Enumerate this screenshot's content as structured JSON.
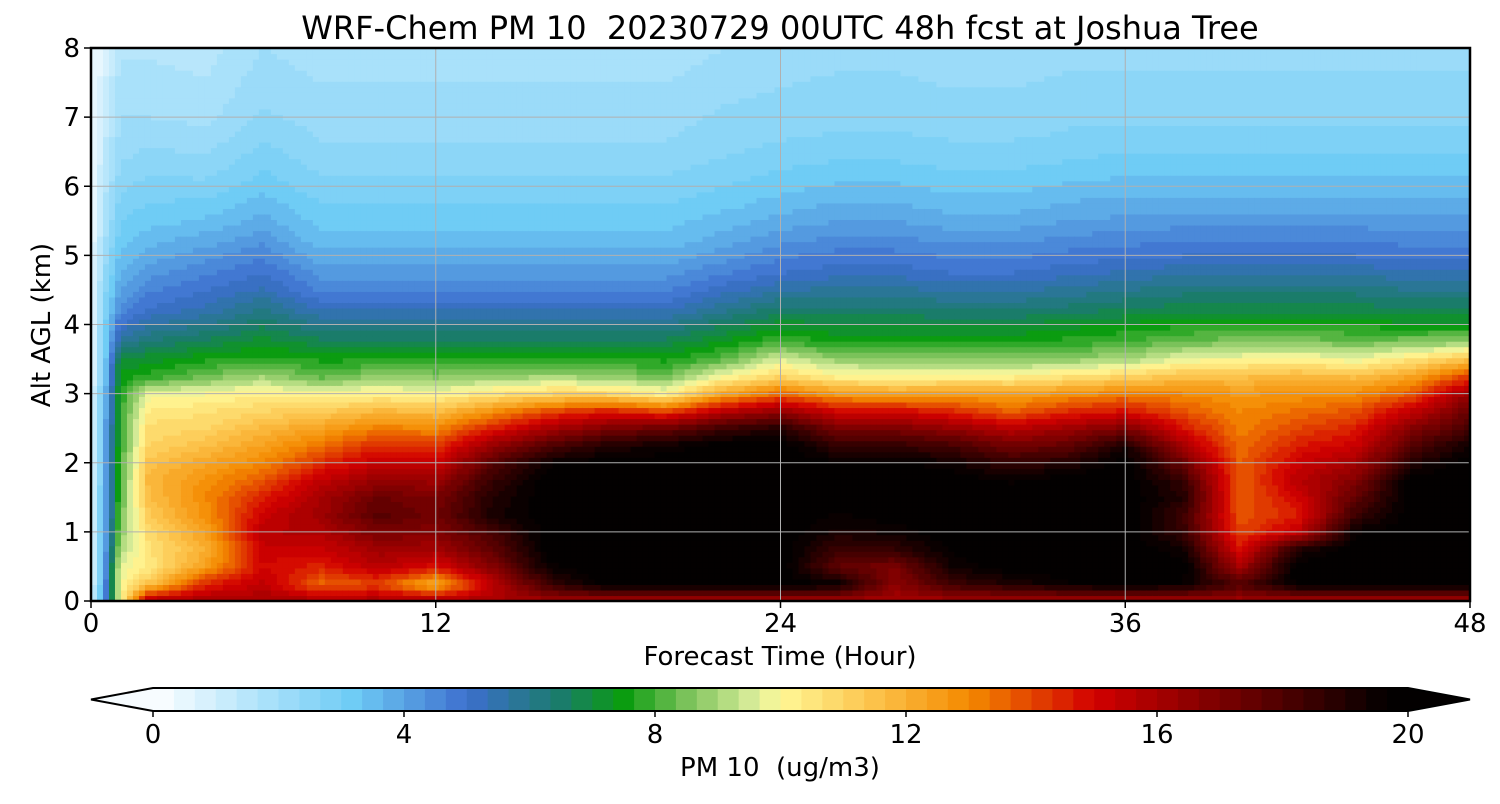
{
  "chart_data": {
    "type": "heatmap",
    "title": "WRF-Chem PM 10  20230729 00UTC 48h fcst at Joshua Tree",
    "xlabel": "Forecast Time (Hour)",
    "ylabel": "Alt AGL (km)",
    "xlim": [
      0,
      48
    ],
    "ylim": [
      0,
      8
    ],
    "xticks": [
      "0",
      "12",
      "24",
      "36",
      "48"
    ],
    "yticks": [
      "0",
      "1",
      "2",
      "3",
      "4",
      "5",
      "6",
      "7",
      "8"
    ],
    "grid": true,
    "colorbar": {
      "label": "PM 10  (ug/m3)",
      "range": [
        0,
        20
      ],
      "ticks": [
        "0",
        "4",
        "8",
        "12",
        "16",
        "20"
      ],
      "extend": "both",
      "orientation": "horizontal",
      "stops": [
        {
          "v": 0,
          "c": "#ffffff"
        },
        {
          "v": 1.5,
          "c": "#b8e6fb"
        },
        {
          "v": 3.2,
          "c": "#6ecbf5"
        },
        {
          "v": 5,
          "c": "#3d6fce"
        },
        {
          "v": 6.5,
          "c": "#1a7c6a"
        },
        {
          "v": 7.5,
          "c": "#0b9c10"
        },
        {
          "v": 8.5,
          "c": "#7ac25a"
        },
        {
          "v": 9.6,
          "c": "#dcee9c"
        },
        {
          "v": 10,
          "c": "#fff896"
        },
        {
          "v": 11.5,
          "c": "#fcc24a"
        },
        {
          "v": 13,
          "c": "#f48a00"
        },
        {
          "v": 15,
          "c": "#d20000"
        },
        {
          "v": 17,
          "c": "#7a0000"
        },
        {
          "v": 19.5,
          "c": "#0a0000"
        },
        {
          "v": 20,
          "c": "#000000"
        }
      ]
    },
    "heights_km": [
      0,
      0.25,
      0.5,
      0.75,
      1,
      1.25,
      1.5,
      1.75,
      2,
      2.25,
      2.5,
      2.75,
      3,
      3.25,
      3.5,
      3.75,
      4,
      4.25,
      4.5,
      4.75,
      5,
      5.25,
      5.5,
      5.75,
      6,
      6.25,
      6.5,
      6.75,
      7,
      7.25,
      7.5,
      7.75,
      8
    ],
    "hours": [
      0,
      0.5,
      1,
      2,
      4,
      6,
      8,
      10,
      12,
      14,
      16,
      18,
      20,
      22,
      24,
      26,
      28,
      30,
      32,
      34,
      36,
      38,
      40,
      42,
      44,
      46,
      48
    ],
    "profiles": [
      [
        0.5,
        0.5,
        0.5,
        0.5,
        0.5,
        0.5,
        0.5,
        0.4,
        0.4,
        0.4,
        0.4,
        0.4,
        0.4,
        0.3,
        0.3,
        0.3,
        0.3,
        0.3,
        0.3,
        0.3,
        0.3,
        0.3,
        0.3,
        0.3,
        0.3,
        0.2,
        0.2,
        0.2,
        0.2,
        0.2,
        0.2,
        0.2,
        0.2
      ],
      [
        4.5,
        4.5,
        4.2,
        4.1,
        4,
        4,
        4,
        4,
        3.9,
        3.9,
        3.9,
        3.8,
        3.6,
        3.4,
        3.2,
        3.1,
        3,
        2.8,
        2.6,
        2.4,
        2.2,
        2,
        1.8,
        1.7,
        1.6,
        1.5,
        1.4,
        1.3,
        1.2,
        1.1,
        1,
        0.9,
        0.9
      ],
      [
        9.8,
        9.8,
        9.7,
        9,
        8.6,
        8.3,
        8.1,
        8,
        7.9,
        7.8,
        7.8,
        7.7,
        7.6,
        7.4,
        7,
        5.8,
        5,
        4.4,
        4,
        3.7,
        3.4,
        3.2,
        3,
        2.8,
        2.6,
        2.4,
        2.2,
        2.1,
        2,
        1.9,
        1.8,
        1.7,
        1.6
      ],
      [
        16,
        11.5,
        10.4,
        10.6,
        10.8,
        11.2,
        11.6,
        11.8,
        11.5,
        11,
        10.8,
        10.4,
        9.8,
        7.8,
        7.2,
        6.4,
        5.6,
        5,
        4.6,
        4.2,
        3.8,
        3.5,
        3.2,
        3,
        2.8,
        2.6,
        2.4,
        2.2,
        2,
        1.9,
        1.8,
        1.7,
        1.6
      ],
      [
        16,
        14.5,
        12.5,
        12,
        12.4,
        12.8,
        13,
        12.8,
        12.3,
        11.6,
        11,
        10.6,
        10,
        8.4,
        7.6,
        6.8,
        6,
        5.4,
        5,
        4.6,
        4.2,
        3.8,
        3.4,
        3.1,
        2.8,
        2.5,
        2.3,
        2.1,
        1.9,
        1.8,
        1.7,
        1.6,
        1.5
      ],
      [
        16,
        15.5,
        15,
        15.2,
        15.6,
        15.2,
        14.6,
        13.8,
        13,
        12.4,
        11.8,
        11,
        10.2,
        9,
        7.8,
        7.2,
        6.6,
        6,
        5.4,
        5,
        4.6,
        4.2,
        3.8,
        3.5,
        3.2,
        3,
        2.8,
        2.6,
        2.4,
        2.3,
        2.2,
        2.1,
        2
      ],
      [
        16,
        13.5,
        14.5,
        15.2,
        15.8,
        16.2,
        16,
        15.4,
        14.4,
        13.4,
        12.4,
        11.2,
        10,
        8.2,
        7.6,
        6.8,
        6,
        5.2,
        4.6,
        4.2,
        3.8,
        3.4,
        3.2,
        3,
        2.8,
        2.6,
        2.4,
        2.3,
        2.2,
        2.1,
        2,
        1.9,
        1.8
      ],
      [
        16,
        14,
        15.6,
        16.2,
        17,
        17.8,
        17.4,
        16.4,
        15.4,
        14.4,
        13.2,
        11.8,
        10.2,
        8.8,
        7.6,
        6.8,
        6,
        5.2,
        4.6,
        4.2,
        3.8,
        3.4,
        3.2,
        3,
        2.8,
        2.6,
        2.4,
        2.3,
        2.2,
        2.1,
        2,
        1.9,
        1.8
      ],
      [
        16,
        12,
        14.8,
        16,
        16.8,
        17.2,
        17,
        16.2,
        15.2,
        14.2,
        13,
        11.6,
        10,
        8.6,
        7.6,
        6.8,
        6,
        5.2,
        4.6,
        4.2,
        3.8,
        3.4,
        3.2,
        3,
        2.8,
        2.6,
        2.4,
        2.3,
        2.2,
        2.1,
        2,
        1.9,
        1.8
      ],
      [
        16,
        15.5,
        16.8,
        17.6,
        18.2,
        19.2,
        19,
        18.6,
        17.8,
        16.4,
        14.6,
        12.8,
        10.6,
        8.8,
        7.6,
        6.8,
        6,
        5.2,
        4.6,
        4.2,
        3.8,
        3.4,
        3.2,
        3,
        2.8,
        2.6,
        2.4,
        2.3,
        2.2,
        2.1,
        2,
        1.9,
        1.8
      ],
      [
        16,
        18.5,
        19.6,
        20,
        20,
        20,
        20,
        20,
        19.6,
        18,
        16,
        14,
        11,
        9,
        7.8,
        6.8,
        6,
        5.2,
        4.6,
        4.2,
        3.8,
        3.4,
        3.2,
        3,
        2.8,
        2.6,
        2.4,
        2.3,
        2.2,
        2.1,
        2,
        1.9,
        1.8
      ],
      [
        16,
        20,
        20,
        20,
        20,
        20,
        20,
        20,
        20,
        19,
        17,
        14.6,
        11,
        8.8,
        7.6,
        6.8,
        6,
        5.2,
        4.6,
        4.2,
        3.8,
        3.4,
        3.2,
        3,
        2.8,
        2.6,
        2.4,
        2.3,
        2.2,
        2.1,
        2,
        1.9,
        1.8
      ],
      [
        16,
        20,
        20,
        20,
        20,
        20,
        20,
        20,
        20,
        19.4,
        17.4,
        14,
        10.2,
        8.4,
        7.6,
        6.8,
        6,
        5.2,
        4.6,
        4.2,
        3.8,
        3.4,
        3.2,
        3,
        2.8,
        2.6,
        2.4,
        2.3,
        2.2,
        2.1,
        2,
        1.9,
        1.8
      ],
      [
        16,
        20,
        20,
        20,
        20,
        20,
        20,
        20,
        20,
        20,
        18.4,
        15.6,
        12.4,
        10,
        8.2,
        7.4,
        6.6,
        5.8,
        5.2,
        4.6,
        4.2,
        3.8,
        3.5,
        3.2,
        3,
        2.8,
        2.6,
        2.5,
        2.4,
        2.3,
        2.2,
        2.1,
        2
      ],
      [
        16,
        20,
        20,
        20,
        20,
        20,
        20,
        20,
        20,
        20,
        19,
        16.4,
        13.6,
        11,
        9.6,
        8,
        7.2,
        6.4,
        5.6,
        5,
        4.6,
        4.2,
        3.8,
        3.5,
        3.2,
        3,
        2.8,
        2.6,
        2.5,
        2.4,
        2.3,
        2.2,
        2.1
      ],
      [
        16,
        19.6,
        17.6,
        18.4,
        19.2,
        19.6,
        20,
        20,
        19.8,
        18.6,
        17,
        15,
        12.6,
        10.2,
        8.8,
        7.6,
        7,
        6.4,
        5.8,
        5.2,
        4.8,
        4.4,
        4,
        3.7,
        3.4,
        3.1,
        2.9,
        2.7,
        2.6,
        2.5,
        2.4,
        2.3,
        2.2
      ],
      [
        16,
        16.6,
        17,
        18.6,
        19.4,
        20,
        20,
        20,
        19.8,
        18.6,
        17,
        15,
        12.4,
        10,
        8.8,
        7.6,
        7,
        6.4,
        5.8,
        5.2,
        4.8,
        4.4,
        4,
        3.7,
        3.4,
        3.1,
        2.9,
        2.7,
        2.6,
        2.5,
        2.4,
        2.3,
        2.2
      ],
      [
        16,
        18.4,
        19.4,
        19.8,
        20,
        20,
        20,
        20,
        19.4,
        18.2,
        16.4,
        14.4,
        12.6,
        10.2,
        8.6,
        7.6,
        7,
        6.2,
        5.6,
        5,
        4.6,
        4.2,
        3.8,
        3.5,
        3.2,
        3,
        2.8,
        2.6,
        2.5,
        2.4,
        2.3,
        2.2,
        2.1
      ],
      [
        16,
        19,
        20,
        20,
        20,
        20,
        20,
        19.6,
        18.6,
        17.2,
        15.6,
        13.6,
        12.4,
        10.2,
        8.6,
        7.6,
        7,
        6.2,
        5.6,
        5,
        4.6,
        4.2,
        3.8,
        3.5,
        3.2,
        3,
        2.8,
        2.6,
        2.5,
        2.4,
        2.3,
        2.2,
        2.1
      ],
      [
        16,
        19.6,
        20,
        20,
        20,
        20,
        20,
        20,
        19,
        17.6,
        16.2,
        14.4,
        12.8,
        10.6,
        8.8,
        7.8,
        7.2,
        6.4,
        5.8,
        5.2,
        4.8,
        4.4,
        4,
        3.7,
        3.4,
        3.1,
        2.9,
        2.7,
        2.6,
        2.5,
        2.4,
        2.3,
        2.2
      ],
      [
        16,
        20,
        20,
        20,
        20,
        20,
        20,
        20,
        20,
        19.2,
        17,
        14.8,
        13.2,
        11,
        9,
        8,
        7.4,
        6.6,
        6,
        5.4,
        4.9,
        4.5,
        4.1,
        3.8,
        3.5,
        3.2,
        3,
        2.8,
        2.6,
        2.5,
        2.4,
        2.3,
        2.2
      ],
      [
        16,
        19.6,
        20,
        19.4,
        18.6,
        18.4,
        19,
        18.6,
        17.4,
        16,
        14.8,
        13.8,
        13,
        11.6,
        9.8,
        8.4,
        7.6,
        6.8,
        6.2,
        5.6,
        5,
        4.6,
        4.2,
        3.8,
        3.5,
        3.2,
        3,
        2.8,
        2.6,
        2.5,
        2.4,
        2.3,
        2.2
      ],
      [
        16,
        18,
        16,
        14.8,
        14,
        13.8,
        13.6,
        13.6,
        13.6,
        13.4,
        13.2,
        13,
        12.6,
        11.6,
        10,
        8.6,
        7.6,
        6.8,
        6.2,
        5.6,
        5,
        4.6,
        4.2,
        3.8,
        3.5,
        3.2,
        3,
        2.8,
        2.6,
        2.5,
        2.4,
        2.3,
        2.2
      ],
      [
        16,
        19.8,
        20,
        19,
        15.4,
        14.6,
        15,
        15.6,
        15.2,
        14.6,
        14,
        13.4,
        12.8,
        11.8,
        10.2,
        8.6,
        7.6,
        6.8,
        6.2,
        5.6,
        5,
        4.6,
        4.2,
        3.8,
        3.5,
        3.2,
        3,
        2.8,
        2.6,
        2.5,
        2.4,
        2.3,
        2.2
      ],
      [
        16,
        20,
        20,
        20,
        19.6,
        18.4,
        17.6,
        16.8,
        16,
        15.2,
        14.6,
        13.8,
        13,
        11.6,
        9.8,
        8.4,
        7.6,
        6.8,
        6.2,
        5.6,
        5,
        4.6,
        4.2,
        3.8,
        3.5,
        3.2,
        3,
        2.8,
        2.6,
        2.5,
        2.4,
        2.3,
        2.2
      ],
      [
        16,
        20,
        20,
        20,
        20,
        20,
        20,
        20,
        19,
        17.8,
        16.8,
        15.4,
        13.8,
        12.4,
        10.6,
        8.6,
        7.4,
        6.6,
        6,
        5.4,
        4.9,
        4.5,
        4.1,
        3.8,
        3.5,
        3.2,
        3,
        2.8,
        2.6,
        2.5,
        2.4,
        2.3,
        2.2
      ],
      [
        16,
        20,
        20,
        20,
        20,
        20,
        20,
        20,
        20,
        19.4,
        18.2,
        17.4,
        16.4,
        14.2,
        11.6,
        8.8,
        7.4,
        6.6,
        6,
        5.4,
        4.9,
        4.5,
        4.1,
        3.8,
        3.5,
        3.2,
        3,
        2.8,
        2.6,
        2.5,
        2.4,
        2.3,
        2.2
      ]
    ]
  }
}
